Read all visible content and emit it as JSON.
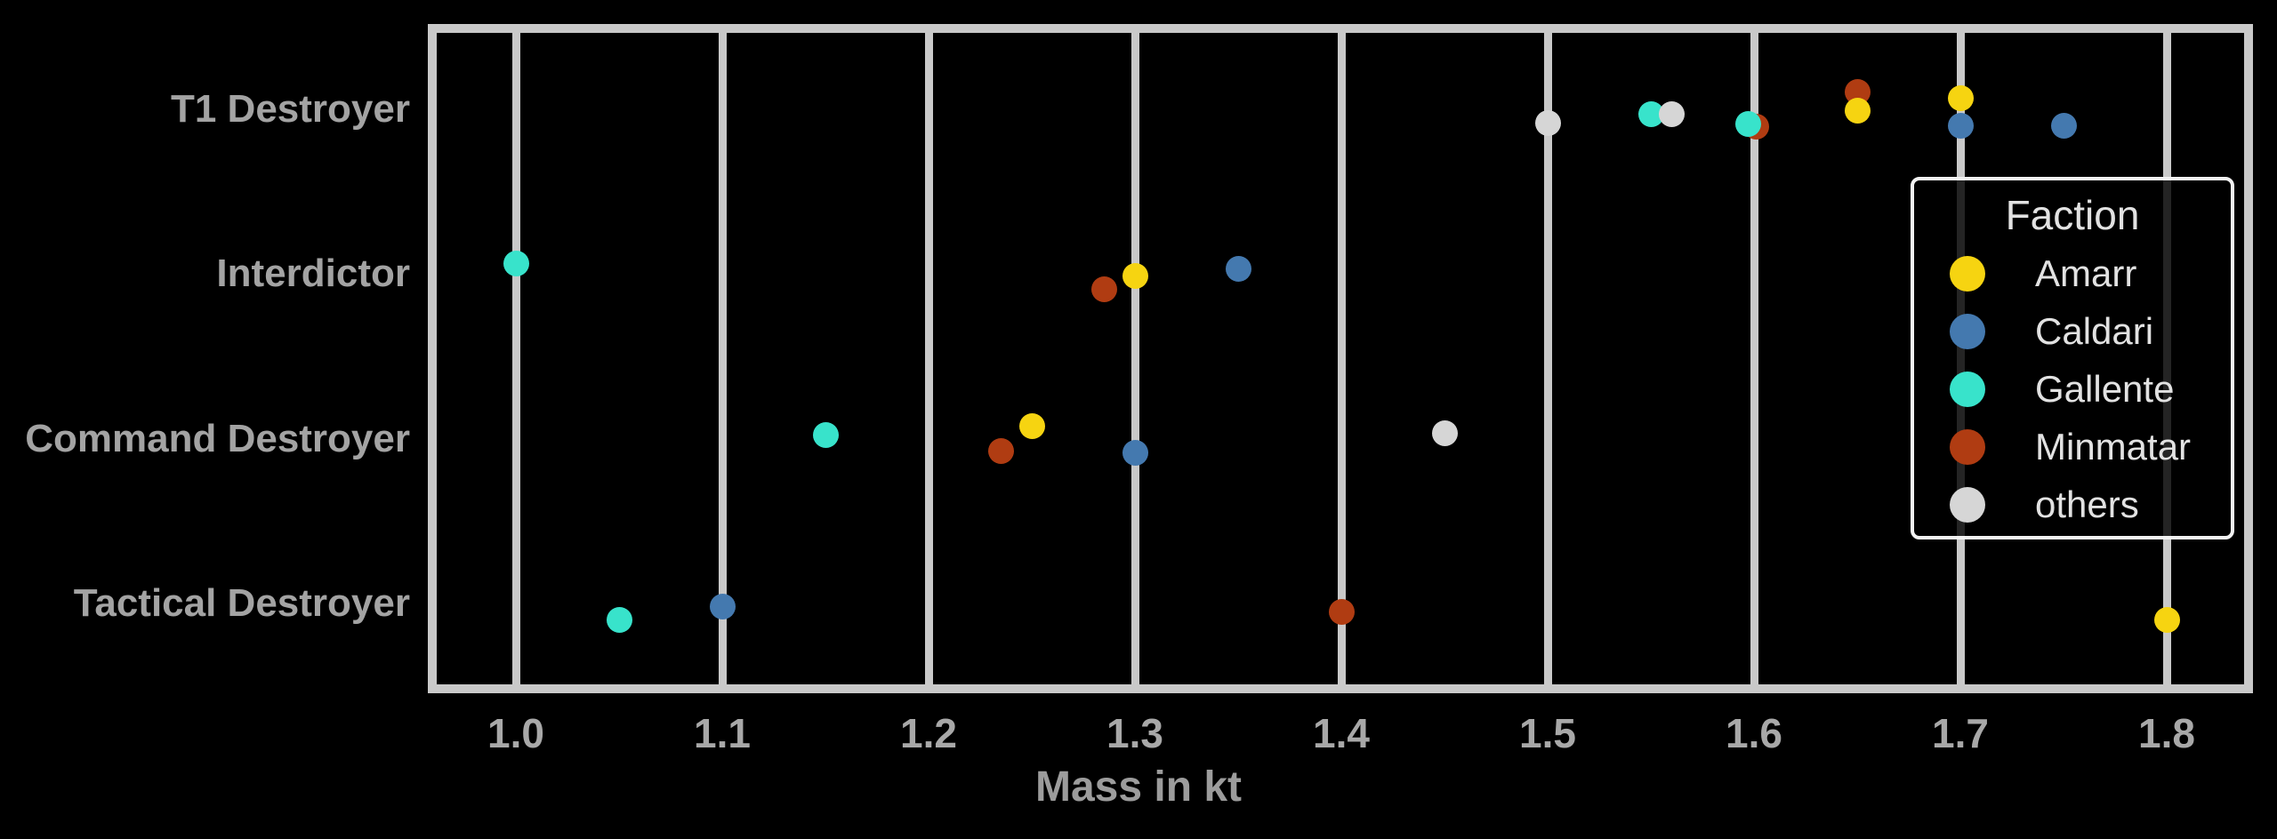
{
  "figure": {
    "background_color": "#000000",
    "plot_border_color": "#c9c9c9",
    "grid_color": "#c9c9c9",
    "axis_text_color": "#a3a3a3",
    "legend_text_color": "#e2e2e2"
  },
  "chart_data": {
    "type": "scatter",
    "title": "",
    "xlabel": "Mass in kt",
    "ylabel": "",
    "grid": "vertical-only",
    "x_ticks": [
      "1.0",
      "1.1",
      "1.2",
      "1.3",
      "1.4",
      "1.5",
      "1.6",
      "1.7",
      "1.8"
    ],
    "x_tick_values": [
      1.0,
      1.1,
      1.2,
      1.3,
      1.4,
      1.5,
      1.6,
      1.7,
      1.8
    ],
    "xlim": [
      0.962,
      1.838
    ],
    "categories": [
      "T1 Destroyer",
      "Interdictor",
      "Command Destroyer",
      "Tactical Destroyer"
    ],
    "legend": {
      "title": "Faction",
      "position": "right",
      "entries": [
        {
          "name": "Amarr",
          "color": "#f6d411"
        },
        {
          "name": "Caldari",
          "color": "#4479af"
        },
        {
          "name": "Gallente",
          "color": "#38e3cb"
        },
        {
          "name": "Minmatar",
          "color": "#b03c12"
        },
        {
          "name": "others",
          "color": "#d6d6d6"
        }
      ]
    },
    "points": [
      {
        "category": "Interdictor",
        "faction": "Gallente",
        "mass": 1.0,
        "jy": -12
      },
      {
        "category": "Interdictor",
        "faction": "Minmatar",
        "mass": 1.285,
        "jy": 17
      },
      {
        "category": "Interdictor",
        "faction": "Amarr",
        "mass": 1.3,
        "jy": 2
      },
      {
        "category": "Interdictor",
        "faction": "Caldari",
        "mass": 1.35,
        "jy": -6
      },
      {
        "category": "Command Destroyer",
        "faction": "Gallente",
        "mass": 1.15,
        "jy": -5
      },
      {
        "category": "Command Destroyer",
        "faction": "Minmatar",
        "mass": 1.235,
        "jy": 13
      },
      {
        "category": "Command Destroyer",
        "faction": "Amarr",
        "mass": 1.25,
        "jy": -15
      },
      {
        "category": "Command Destroyer",
        "faction": "Caldari",
        "mass": 1.3,
        "jy": 15
      },
      {
        "category": "Command Destroyer",
        "faction": "others",
        "mass": 1.45,
        "jy": -7
      },
      {
        "category": "Tactical Destroyer",
        "faction": "Gallente",
        "mass": 1.05,
        "jy": 18
      },
      {
        "category": "Tactical Destroyer",
        "faction": "Caldari",
        "mass": 1.1,
        "jy": 3
      },
      {
        "category": "Tactical Destroyer",
        "faction": "Minmatar",
        "mass": 1.4,
        "jy": 9
      },
      {
        "category": "Tactical Destroyer",
        "faction": "Amarr",
        "mass": 1.8,
        "jy": 18
      },
      {
        "category": "T1 Destroyer",
        "faction": "others",
        "mass": 1.5,
        "jy": 15
      },
      {
        "category": "T1 Destroyer",
        "faction": "Gallente",
        "mass": 1.55,
        "jy": 5
      },
      {
        "category": "T1 Destroyer",
        "faction": "others",
        "mass": 1.56,
        "jy": 5
      },
      {
        "category": "T1 Destroyer",
        "faction": "Minmatar",
        "mass": 1.601,
        "jy": 19
      },
      {
        "category": "T1 Destroyer",
        "faction": "Gallente",
        "mass": 1.597,
        "jy": 16
      },
      {
        "category": "T1 Destroyer",
        "faction": "Minmatar",
        "mass": 1.65,
        "jy": -20
      },
      {
        "category": "T1 Destroyer",
        "faction": "Amarr",
        "mass": 1.65,
        "jy": 1
      },
      {
        "category": "T1 Destroyer",
        "faction": "Amarr",
        "mass": 1.7,
        "jy": -13
      },
      {
        "category": "T1 Destroyer",
        "faction": "Caldari",
        "mass": 1.7,
        "jy": 18
      },
      {
        "category": "T1 Destroyer",
        "faction": "Caldari",
        "mass": 1.75,
        "jy": 18
      }
    ]
  }
}
